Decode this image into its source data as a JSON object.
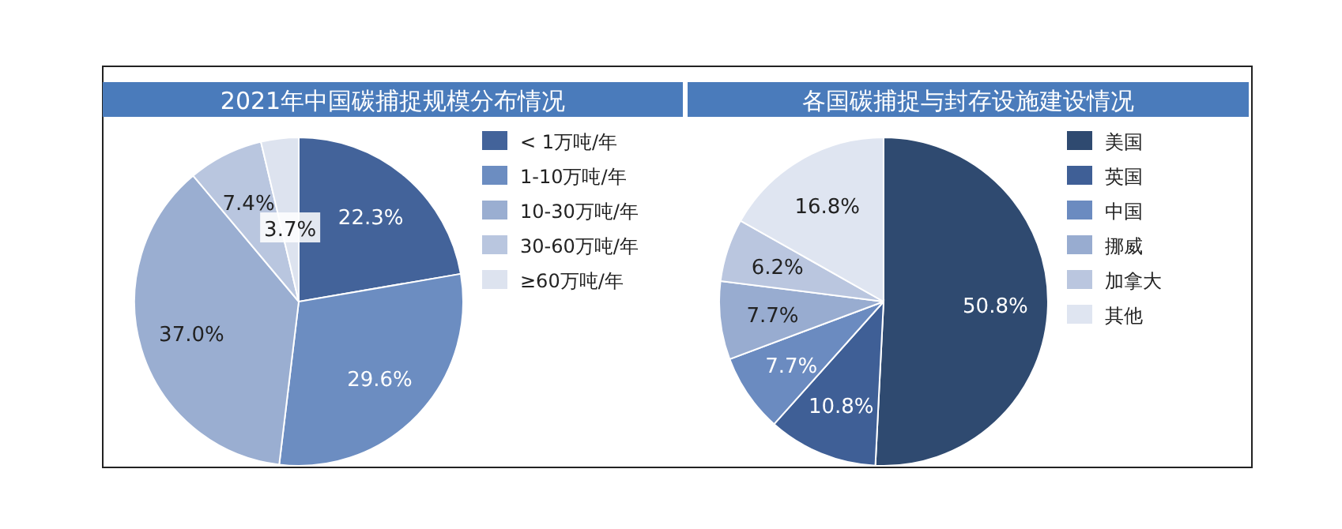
{
  "chart_data": [
    {
      "type": "pie",
      "title": "2021年中国碳捕捉规模分布情况",
      "categories": [
        "< 1万吨/年",
        "1-10万吨/年",
        "10-30万吨/年",
        "30-60万吨/年",
        "≥60万吨/年"
      ],
      "values": [
        22.3,
        29.6,
        37.0,
        7.4,
        3.7
      ],
      "colors": [
        "#43639a",
        "#6c8dc1",
        "#9aaed1",
        "#b9c6df",
        "#dde3ef"
      ],
      "value_labels": [
        "22.3%",
        "29.6%",
        "37.0%",
        "7.4%",
        "3.7%"
      ],
      "legend": "right"
    },
    {
      "type": "pie",
      "title": "各国碳捕捉与封存设施建设情况",
      "categories": [
        "美国",
        "英国",
        "中国",
        "挪威",
        "加拿大",
        "其他"
      ],
      "values": [
        50.8,
        10.8,
        7.7,
        7.7,
        6.2,
        16.8
      ],
      "colors": [
        "#2f4a70",
        "#3f5f96",
        "#6b8bc0",
        "#98acd0",
        "#bac6df",
        "#dfe5f1"
      ],
      "value_labels": [
        "50.8%",
        "10.8%",
        "7.7%",
        "7.7%",
        "6.2%",
        "16.8%"
      ],
      "legend": "right"
    }
  ]
}
